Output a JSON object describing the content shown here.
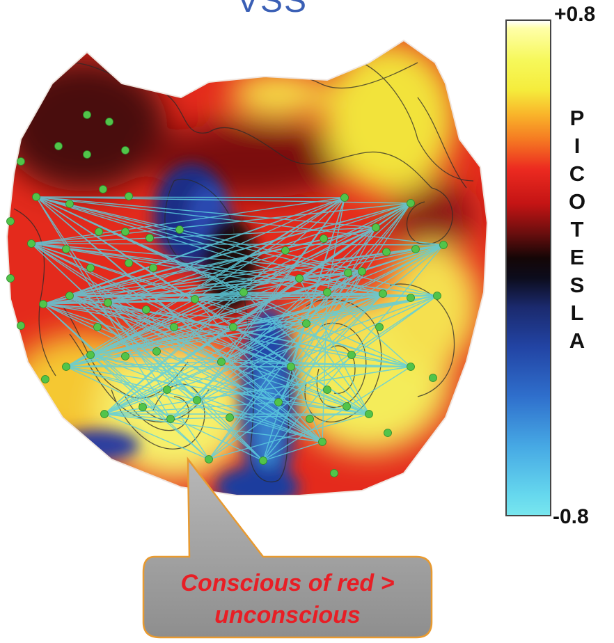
{
  "header": {
    "partial_title": "VSS"
  },
  "colorbar": {
    "max_label": "+0.8",
    "min_label": "-0.8",
    "unit_letters": [
      "P",
      "I",
      "C",
      "O",
      "T",
      "E",
      "S",
      "L",
      "A"
    ],
    "range": [
      -0.8,
      0.8
    ],
    "colors": {
      "high": "#f6f85a",
      "mid_high": "#ec2a20",
      "zero": "#140606",
      "mid_low": "#2244a4",
      "low": "#78e6ee"
    }
  },
  "callout": {
    "line1": "Conscious of red >",
    "line2": "unconscious"
  },
  "connections_color": "#5ccfe0",
  "sensor_color": "#52c44a"
}
